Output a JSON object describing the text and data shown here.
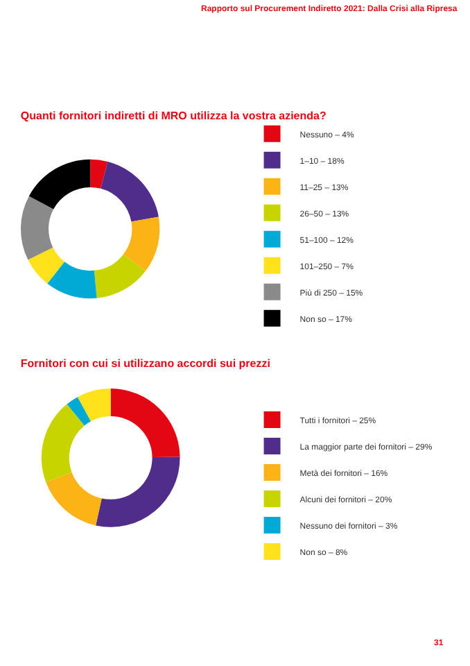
{
  "chart_data": [
    {
      "type": "donut",
      "title": "Quanti fornitori indiretti di MRO utilizza la vostra azienda?",
      "annotations": [
        "Rapporto sul Procurement Indiretto 2021: Dalla Crisi alla Ripresa"
      ],
      "categories": [
        "Nessuno – 4%",
        "1–10 – 18%",
        "11–25 – 13%",
        "26–50 – 13%",
        "51–100 – 12%",
        "101–250 – 7%",
        "Più di 250 – 15%",
        "Non so – 17%"
      ],
      "values": [
        4,
        18,
        13,
        13,
        12,
        7,
        15,
        17
      ],
      "colors": [
        "#e30613",
        "#512d8b",
        "#fbb315",
        "#c8d400",
        "#00aad4",
        "#ffe11c",
        "#8a8a8a",
        "#000000"
      ],
      "legend": "right"
    },
    {
      "type": "donut",
      "title": "Fornitori con cui si utilizzano accordi sui prezzi",
      "annotations": [
        "31"
      ],
      "categories": [
        "Tutti i fornitori – 25%",
        "La maggior parte dei fornitori – 29%",
        "Metà dei fornitori – 16%",
        "Alcuni dei fornitori – 20%",
        "Nessuno dei fornitori – 3%",
        "Non so – 8%"
      ],
      "values": [
        25,
        29,
        16,
        20,
        3,
        8
      ],
      "colors": [
        "#e30613",
        "#512d8b",
        "#fbb315",
        "#c8d400",
        "#00aad4",
        "#ffe11c"
      ],
      "legend": "right"
    }
  ]
}
